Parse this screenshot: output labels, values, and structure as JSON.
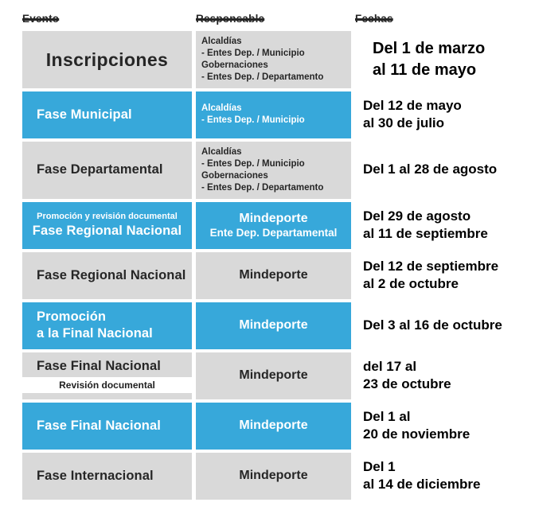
{
  "colors": {
    "blue": "#37a8da",
    "gray": "#d9d9d9",
    "dark_text": "#262626",
    "light_text": "#ffffff"
  },
  "columns": {
    "evento": "Evento",
    "responsable": "Responsable",
    "fechas": "Fechas"
  },
  "rows": [
    {
      "bg": "gray",
      "event": {
        "pre": "",
        "lines": [
          "Inscripciones"
        ],
        "align": "center",
        "size": "xl",
        "sub": ""
      },
      "resp": {
        "mode": "list",
        "lines": [
          "Alcaldías",
          "- Entes Dep. / Municipio",
          "Gobernaciones",
          "- Entes Dep. / Departamento"
        ]
      },
      "fecha": {
        "lines": [
          "Del 1 de marzo",
          "al 11 de mayo"
        ],
        "size": "lg"
      }
    },
    {
      "bg": "blue",
      "event": {
        "pre": "",
        "lines": [
          "Fase Municipal"
        ],
        "align": "left",
        "size": "md",
        "sub": ""
      },
      "resp": {
        "mode": "list",
        "lines": [
          "Alcaldías",
          "- Entes Dep. / Municipio"
        ]
      },
      "fecha": {
        "lines": [
          "Del 12 de mayo",
          "al 30 de julio"
        ],
        "size": "md"
      }
    },
    {
      "bg": "gray",
      "event": {
        "pre": "",
        "lines": [
          "Fase Departamental"
        ],
        "align": "left",
        "size": "md",
        "sub": ""
      },
      "resp": {
        "mode": "list",
        "lines": [
          "Alcaldías",
          "- Entes Dep. / Municipio",
          "Gobernaciones",
          "- Entes Dep. / Departamento"
        ]
      },
      "fecha": {
        "lines": [
          "Del 1 al 28 de agosto"
        ],
        "size": "md"
      }
    },
    {
      "bg": "blue",
      "event": {
        "pre": "Promoción y revisión documental",
        "lines": [
          "Fase Regional Nacional"
        ],
        "align": "center",
        "size": "md",
        "sub": ""
      },
      "resp": {
        "mode": "center",
        "main": "Mindeporte",
        "sub": "Ente Dep. Departamental"
      },
      "fecha": {
        "lines": [
          "Del 29 de agosto",
          "al 11 de septiembre"
        ],
        "size": "md"
      }
    },
    {
      "bg": "gray",
      "event": {
        "pre": "",
        "lines": [
          "Fase Regional Nacional"
        ],
        "align": "left",
        "size": "md",
        "sub": ""
      },
      "resp": {
        "mode": "center",
        "main": "Mindeporte",
        "sub": ""
      },
      "fecha": {
        "lines": [
          "Del 12 de septiembre",
          "al 2 de octubre"
        ],
        "size": "md"
      }
    },
    {
      "bg": "blue",
      "event": {
        "pre": "",
        "lines": [
          "Promoción",
          "a la Final Nacional"
        ],
        "align": "left",
        "size": "md",
        "sub": ""
      },
      "resp": {
        "mode": "center",
        "main": "Mindeporte",
        "sub": ""
      },
      "fecha": {
        "lines": [
          "Del 3 al 16 de octubre"
        ],
        "size": "md"
      }
    },
    {
      "bg": "gray",
      "event": {
        "pre": "",
        "lines": [
          "Fase Final Nacional"
        ],
        "align": "left",
        "size": "md",
        "sub": "Revisión documental"
      },
      "resp": {
        "mode": "center",
        "main": "Mindeporte",
        "sub": ""
      },
      "fecha": {
        "lines": [
          "del 17 al",
          "23 de octubre"
        ],
        "size": "md"
      }
    },
    {
      "bg": "blue",
      "event": {
        "pre": "",
        "lines": [
          "Fase Final Nacional"
        ],
        "align": "left",
        "size": "md",
        "sub": ""
      },
      "resp": {
        "mode": "center",
        "main": "Mindeporte",
        "sub": ""
      },
      "fecha": {
        "lines": [
          "Del 1 al",
          "20 de noviembre"
        ],
        "size": "md"
      }
    },
    {
      "bg": "gray",
      "event": {
        "pre": "",
        "lines": [
          "Fase Internacional"
        ],
        "align": "left",
        "size": "md",
        "sub": ""
      },
      "resp": {
        "mode": "center",
        "main": "Mindeporte",
        "sub": ""
      },
      "fecha": {
        "lines": [
          "Del 1",
          "al 14 de diciembre"
        ],
        "size": "md"
      }
    }
  ]
}
